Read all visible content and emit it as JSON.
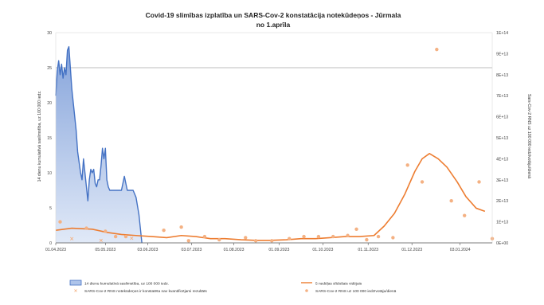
{
  "chart_data": {
    "type": "line",
    "title_lines": [
      "Covid-19 slimības izplatība un SARS-Cov-2 konstatācija notekūdeņos - Jūrmala",
      "no 1.aprīla"
    ],
    "x_tick_labels": [
      "01.04.2023",
      "05.05.2023",
      "03.06.2023",
      "03.07.2023",
      "01.08.2023",
      "01.09.2023",
      "01.10.2023",
      "01.11.2023",
      "01.12.2023",
      "03.01.2024"
    ],
    "y_left_label": "14 dienu kumulatīvā saslimstība, uz 100 000 iedz.",
    "y_left_ticks": [
      "0",
      "5",
      "10",
      "15",
      "20",
      "25",
      "30"
    ],
    "y_left_range": [
      0,
      30
    ],
    "y_right_label": "Sars-Cov-2 RNS uz 100 000 iedzīvotāju/dienā",
    "y_right_ticks": [
      "0E+00",
      "1E+13",
      "2E+13",
      "3E+13",
      "4E+13",
      "5E+13",
      "6E+13",
      "7E+13",
      "8E+13",
      "9E+13",
      "1E+14"
    ],
    "y_right_range": [
      0,
      100000000000000.0
    ],
    "reference_line_left": 25,
    "series": [
      {
        "name": "14 dienu kumulatīvā saslimstība, uz 100 000 iedz.",
        "kind": "area",
        "axis": "left",
        "color": "#4472c4",
        "points": [
          [
            "2023-04-01",
            21
          ],
          [
            "2023-04-02",
            24.5
          ],
          [
            "2023-04-03",
            26
          ],
          [
            "2023-04-04",
            24
          ],
          [
            "2023-04-05",
            25.5
          ],
          [
            "2023-04-06",
            23.5
          ],
          [
            "2023-04-07",
            25
          ],
          [
            "2023-04-08",
            24
          ],
          [
            "2023-04-09",
            27.5
          ],
          [
            "2023-04-10",
            28
          ],
          [
            "2023-04-11",
            25
          ],
          [
            "2023-04-12",
            22
          ],
          [
            "2023-04-13",
            20
          ],
          [
            "2023-04-14",
            18
          ],
          [
            "2023-04-15",
            16
          ],
          [
            "2023-04-16",
            13
          ],
          [
            "2023-04-17",
            11.5
          ],
          [
            "2023-04-18",
            10
          ],
          [
            "2023-04-19",
            9
          ],
          [
            "2023-04-20",
            12
          ],
          [
            "2023-04-21",
            10
          ],
          [
            "2023-04-22",
            8
          ],
          [
            "2023-04-23",
            6
          ],
          [
            "2023-04-24",
            9
          ],
          [
            "2023-04-25",
            10.5
          ],
          [
            "2023-04-26",
            10
          ],
          [
            "2023-04-27",
            10.5
          ],
          [
            "2023-04-28",
            8.5
          ],
          [
            "2023-04-29",
            8
          ],
          [
            "2023-04-30",
            9
          ],
          [
            "2023-05-01",
            9
          ],
          [
            "2023-05-02",
            11
          ],
          [
            "2023-05-03",
            13.5
          ],
          [
            "2023-05-04",
            12
          ],
          [
            "2023-05-05",
            13.5
          ],
          [
            "2023-05-06",
            9
          ],
          [
            "2023-05-07",
            8
          ],
          [
            "2023-05-08",
            7.5
          ],
          [
            "2023-05-09",
            7.5
          ],
          [
            "2023-05-12",
            7.5
          ],
          [
            "2023-05-16",
            7.5
          ],
          [
            "2023-05-18",
            9.5
          ],
          [
            "2023-05-20",
            7.5
          ],
          [
            "2023-05-24",
            7.5
          ],
          [
            "2023-05-26",
            6.5
          ],
          [
            "2023-05-28",
            4
          ],
          [
            "2023-05-29",
            2
          ],
          [
            "2023-05-30",
            0
          ]
        ]
      },
      {
        "name": "5 nedēļas slīdošais vidējais",
        "kind": "line",
        "axis": "right",
        "color": "#ed7d31",
        "points": [
          [
            "2023-04-01",
            6000000000000.0
          ],
          [
            "2023-04-12",
            7000000000000.0
          ],
          [
            "2023-04-26",
            6500000000000.0
          ],
          [
            "2023-05-06",
            5000000000000.0
          ],
          [
            "2023-05-16",
            4000000000000.0
          ],
          [
            "2023-05-26",
            3500000000000.0
          ],
          [
            "2023-06-06",
            3000000000000.0
          ],
          [
            "2023-06-16",
            2500000000000.0
          ],
          [
            "2023-06-26",
            3500000000000.0
          ],
          [
            "2023-07-06",
            3000000000000.0
          ],
          [
            "2023-07-16",
            2000000000000.0
          ],
          [
            "2023-07-26",
            2000000000000.0
          ],
          [
            "2023-08-06",
            1500000000000.0
          ],
          [
            "2023-08-16",
            1200000000000.0
          ],
          [
            "2023-08-26",
            1200000000000.0
          ],
          [
            "2023-09-06",
            1500000000000.0
          ],
          [
            "2023-09-16",
            2000000000000.0
          ],
          [
            "2023-09-26",
            2000000000000.0
          ],
          [
            "2023-10-06",
            2500000000000.0
          ],
          [
            "2023-10-16",
            3000000000000.0
          ],
          [
            "2023-10-26",
            3000000000000.0
          ],
          [
            "2023-11-05",
            3500000000000.0
          ],
          [
            "2023-11-12",
            8000000000000.0
          ],
          [
            "2023-11-19",
            14000000000000.0
          ],
          [
            "2023-11-26",
            23000000000000.0
          ],
          [
            "2023-12-03",
            34000000000000.0
          ],
          [
            "2023-12-08",
            40000000000000.0
          ],
          [
            "2023-12-13",
            42500000000000.0
          ],
          [
            "2023-12-19",
            40000000000000.0
          ],
          [
            "2023-12-25",
            36000000000000.0
          ],
          [
            "2024-01-01",
            29000000000000.0
          ],
          [
            "2024-01-07",
            22000000000000.0
          ],
          [
            "2024-01-14",
            16500000000000.0
          ],
          [
            "2024-01-20",
            15000000000000.0
          ]
        ]
      },
      {
        "name": "SARS-Cov-2 RNS notekūdeņos ir konstatēta nav kvantificējami rezultāts",
        "kind": "scatter",
        "marker": "cross",
        "axis": "right",
        "color": "#f4b183",
        "points": [
          [
            "2023-04-12",
            2000000000000.0
          ],
          [
            "2023-05-02",
            1200000000000.0
          ],
          [
            "2023-05-23",
            2200000000000.0
          ]
        ]
      },
      {
        "name": "SARS-Cov-2 RNS uz 100 000 iedzīvotāju/dienā",
        "kind": "scatter",
        "marker": "dot",
        "axis": "right",
        "color": "#f4b183",
        "points": [
          [
            "2023-04-04",
            10000000000000.0
          ],
          [
            "2023-04-22",
            7000000000000.0
          ],
          [
            "2023-05-05",
            5500000000000.0
          ],
          [
            "2023-05-12",
            3000000000000.0
          ],
          [
            "2023-05-19",
            3000000000000.0
          ],
          [
            "2023-06-14",
            6000000000000.0
          ],
          [
            "2023-06-26",
            7500000000000.0
          ],
          [
            "2023-07-01",
            1000000000000.0
          ],
          [
            "2023-07-12",
            3000000000000.0
          ],
          [
            "2023-07-22",
            1500000000000.0
          ],
          [
            "2023-08-09",
            2500000000000.0
          ],
          [
            "2023-08-16",
            1000000000000.0
          ],
          [
            "2023-08-27",
            1000000000000.0
          ],
          [
            "2023-09-08",
            2000000000000.0
          ],
          [
            "2023-09-18",
            3000000000000.0
          ],
          [
            "2023-09-28",
            3000000000000.0
          ],
          [
            "2023-10-08",
            3000000000000.0
          ],
          [
            "2023-10-18",
            3500000000000.0
          ],
          [
            "2023-10-24",
            6500000000000.0
          ],
          [
            "2023-10-31",
            1500000000000.0
          ],
          [
            "2023-11-08",
            3000000000000.0
          ],
          [
            "2023-11-18",
            2500000000000.0
          ],
          [
            "2023-11-28",
            37000000000000.0
          ],
          [
            "2023-12-08",
            29000000000000.0
          ],
          [
            "2023-12-18",
            92000000000000.0
          ],
          [
            "2023-12-28",
            20000000000000.0
          ],
          [
            "2024-01-06",
            13000000000000.0
          ],
          [
            "2024-01-16",
            29000000000000.0
          ],
          [
            "2024-01-25",
            2000000000000.0
          ]
        ]
      }
    ],
    "legend_position": "bottom",
    "grid": false
  }
}
